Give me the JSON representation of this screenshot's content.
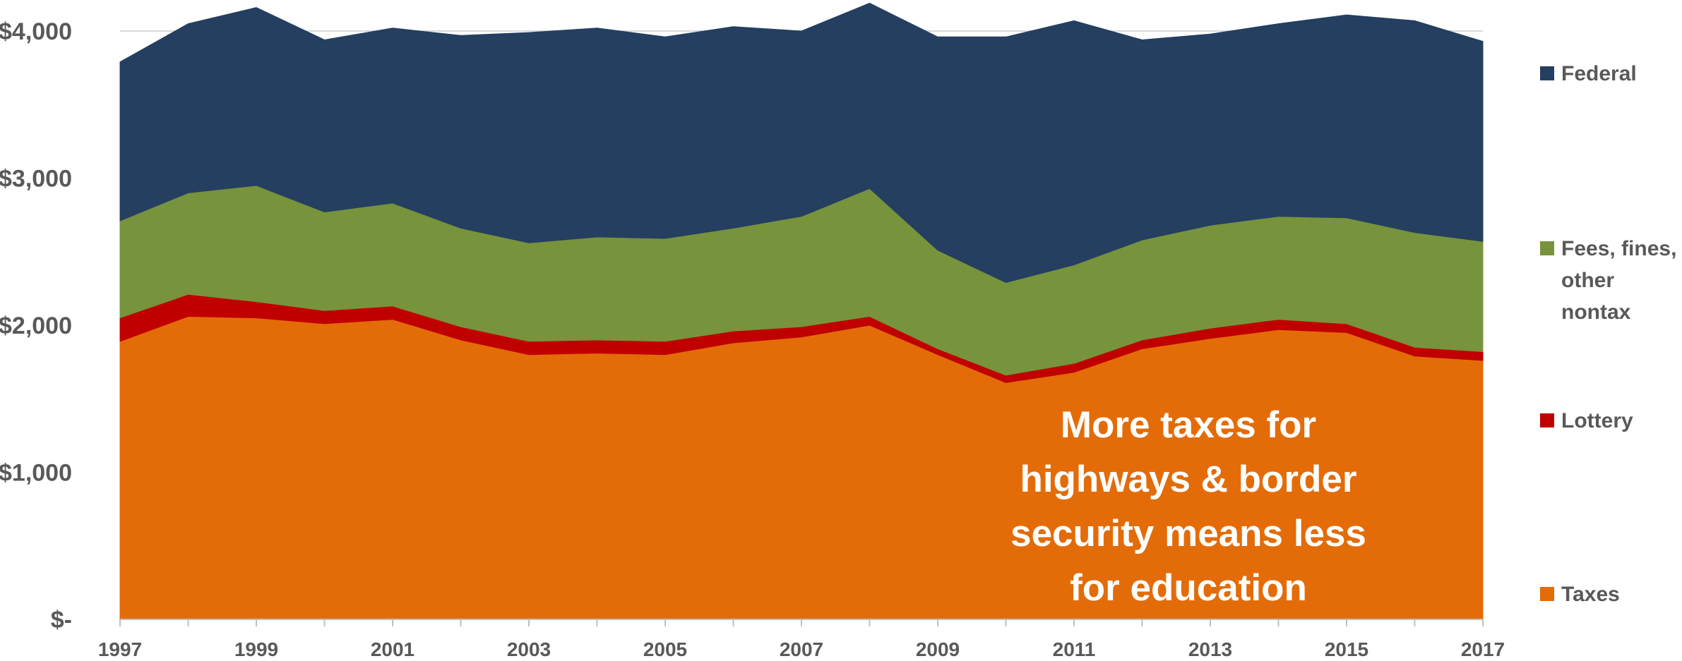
{
  "chart_data": {
    "type": "area",
    "stacked": true,
    "x": [
      1997,
      1998,
      1999,
      2000,
      2001,
      2002,
      2003,
      2004,
      2005,
      2006,
      2007,
      2008,
      2009,
      2010,
      2011,
      2012,
      2013,
      2014,
      2015,
      2016,
      2017
    ],
    "x_tick_labels": [
      "1997",
      "1999",
      "2001",
      "2003",
      "2005",
      "2007",
      "2009",
      "2011",
      "2013",
      "2015",
      "2017"
    ],
    "y_tick_labels": [
      "$-",
      "$1,000",
      "$2,000",
      "$3,000",
      "$4,000"
    ],
    "ylim": [
      0,
      4250
    ],
    "grid": "horizontal",
    "legend": "right",
    "series": [
      {
        "name": "Taxes",
        "color": "#e36c09",
        "values": [
          1890,
          2060,
          2050,
          2010,
          2040,
          1900,
          1800,
          1810,
          1800,
          1880,
          1920,
          2000,
          1800,
          1610,
          1680,
          1840,
          1910,
          1970,
          1950,
          1790,
          1760
        ]
      },
      {
        "name": "Lottery",
        "color": "#c00000",
        "values": [
          160,
          150,
          110,
          90,
          90,
          90,
          90,
          90,
          90,
          80,
          70,
          60,
          40,
          50,
          60,
          60,
          70,
          70,
          60,
          60,
          60
        ]
      },
      {
        "name": "Fees, fines, other nontax",
        "color": "#77933c",
        "values": [
          660,
          690,
          790,
          670,
          700,
          670,
          670,
          700,
          700,
          700,
          750,
          870,
          670,
          630,
          670,
          680,
          700,
          700,
          720,
          780,
          750
        ]
      },
      {
        "name": "Federal",
        "color": "#243f60",
        "values": [
          1080,
          1150,
          1210,
          1170,
          1190,
          1310,
          1430,
          1420,
          1370,
          1370,
          1260,
          1260,
          1450,
          1670,
          1660,
          1360,
          1300,
          1310,
          1380,
          1440,
          1360
        ]
      }
    ],
    "annotation": [
      "More taxes for",
      "highways & border",
      "security means less",
      "for education"
    ]
  },
  "legend_lines": {
    "Taxes": [
      "Taxes"
    ],
    "Lottery": [
      "Lottery"
    ],
    "Fees, fines, other nontax": [
      "Fees, fines,",
      "other",
      "nontax"
    ],
    "Federal": [
      "Federal"
    ]
  }
}
